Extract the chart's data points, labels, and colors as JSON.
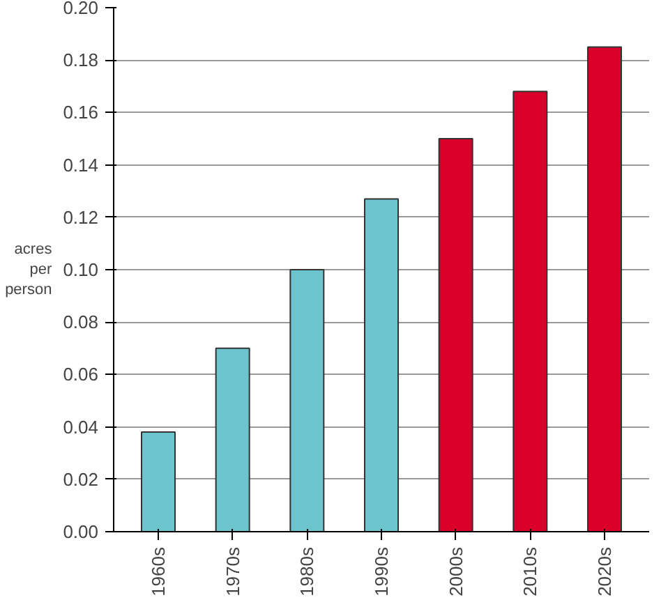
{
  "chart_data": {
    "type": "bar",
    "ylabel": "acres per person",
    "categories": [
      "1960s",
      "1970s",
      "1980s",
      "1990s",
      "2000s",
      "2010s",
      "2020s"
    ],
    "values": [
      0.038,
      0.07,
      0.1,
      0.127,
      0.15,
      0.168,
      0.185
    ],
    "colors": [
      "#6cc5cc",
      "#6cc5cc",
      "#6cc5cc",
      "#6cc5cc",
      "#d9002a",
      "#d9002a",
      "#d9002a"
    ],
    "ylim": [
      0,
      0.2
    ],
    "yticks": [
      {
        "value": 0,
        "label": "0.00"
      },
      {
        "value": 0.02,
        "label": "0.02"
      },
      {
        "value": 0.04,
        "label": "0.04"
      },
      {
        "value": 0.06,
        "label": "0.06"
      },
      {
        "value": 0.08,
        "label": "0.08"
      },
      {
        "value": 0.1,
        "label": "0.10"
      },
      {
        "value": 0.12,
        "label": "0.12"
      },
      {
        "value": 0.14,
        "label": "0.14"
      },
      {
        "value": 0.16,
        "label": "0.16"
      },
      {
        "value": 0.18,
        "label": "0.18"
      },
      {
        "value": 0.2,
        "label": "0.20"
      }
    ],
    "grid": "y"
  }
}
